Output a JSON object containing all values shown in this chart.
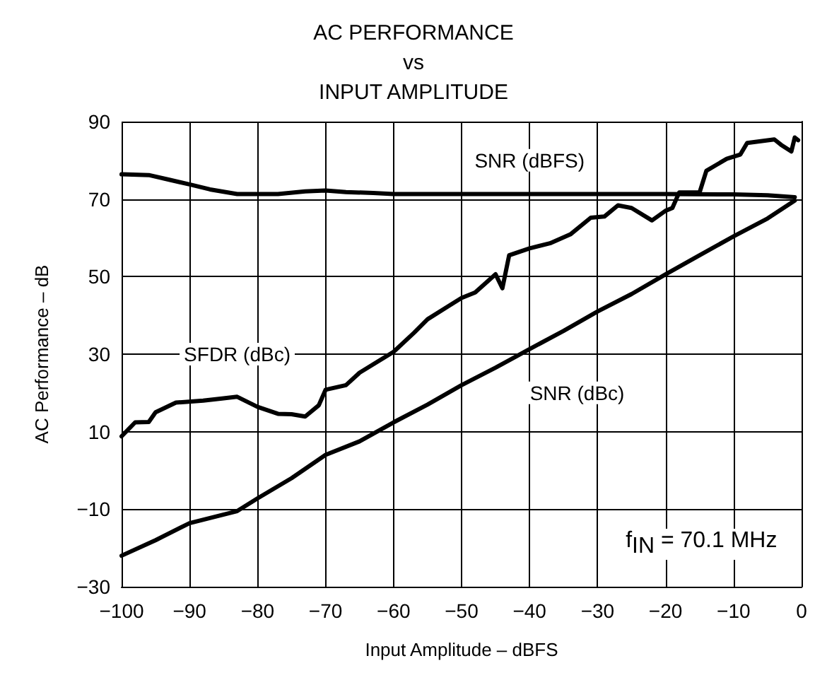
{
  "chart_data": {
    "type": "line",
    "title": "AC PERFORMANCE\nvs\nINPUT AMPLITUDE",
    "xlabel": "Input Amplitude – dBFS",
    "ylabel": "AC Performance – dB",
    "xlim": [
      -100,
      0
    ],
    "xticks": [
      -100,
      -90,
      -80,
      -70,
      -60,
      -50,
      -40,
      -30,
      -20,
      -10,
      0
    ],
    "ylim": [
      -30,
      90
    ],
    "yticks": [
      -30,
      -10,
      10,
      30,
      50,
      70,
      90
    ],
    "grid": true,
    "marker": "none",
    "line_style": "solid",
    "annotations": [
      "f$_{IN}$ = 70.1 MHz"
    ],
    "series": [
      {
        "name": "SNR (dBFS)",
        "color": "#000000",
        "x": [
          -100,
          -96,
          -93,
          -90,
          -87,
          -83,
          -80,
          -77,
          -73,
          -70,
          -67,
          -63,
          -60,
          -50,
          -40,
          -30,
          -20,
          -10,
          -5,
          -1
        ],
        "values": [
          76.4,
          76.2,
          75,
          73.8,
          72.5,
          71.3,
          71.3,
          71.3,
          72,
          72.2,
          71.8,
          71.6,
          71.3,
          71.3,
          71.3,
          71.3,
          71.3,
          71.2,
          71,
          70.5
        ]
      },
      {
        "name": "SFDR (dBc)",
        "color": "#000000",
        "x": [
          -100,
          -98,
          -96,
          -95,
          -92,
          -88,
          -85,
          -83,
          -80,
          -77,
          -75,
          -73,
          -71,
          -70,
          -67,
          -65,
          -60,
          -57,
          -55,
          -52,
          -50,
          -48,
          -45,
          -44,
          -43,
          -40,
          -37,
          -34,
          -31,
          -29,
          -27,
          -25,
          -22,
          -20,
          -19,
          -18,
          -15,
          -14,
          -11,
          -9,
          -8,
          -4,
          -3,
          -1.5,
          -1,
          -0.5
        ],
        "values": [
          8.8,
          12.4,
          12.5,
          15,
          17.5,
          18,
          18.6,
          19,
          16.4,
          14.6,
          14.5,
          13.9,
          16.8,
          20.8,
          22,
          25.2,
          30.6,
          35.5,
          39,
          42.3,
          44.5,
          45.9,
          50.6,
          47,
          55.5,
          57.3,
          58.6,
          60.9,
          65.2,
          65.5,
          68.4,
          67.7,
          64.5,
          67,
          67.7,
          71.7,
          71.7,
          77.3,
          80.4,
          81.5,
          84.5,
          85.4,
          84,
          82.3,
          85.9,
          85.2
        ]
      },
      {
        "name": "SNR (dBc)",
        "color": "#000000",
        "x": [
          -100,
          -95,
          -90,
          -83,
          -80,
          -75,
          -70,
          -65,
          -60,
          -55,
          -50,
          -45,
          -40,
          -35,
          -30,
          -25,
          -20,
          -15,
          -10,
          -5,
          -1
        ],
        "values": [
          -22,
          -18,
          -13.6,
          -10.5,
          -7.2,
          -2,
          4,
          7.5,
          12.4,
          17,
          22,
          26.5,
          31.3,
          36,
          41,
          45.5,
          50.6,
          55.5,
          60.4,
          65,
          69.6
        ]
      }
    ]
  }
}
